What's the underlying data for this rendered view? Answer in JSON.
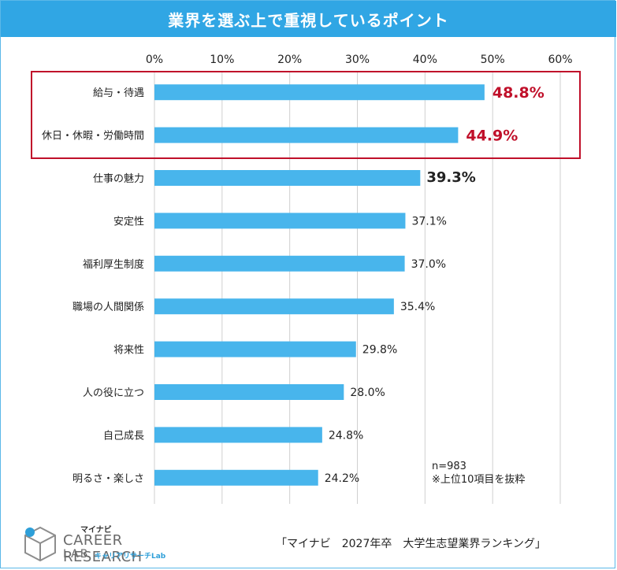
{
  "title": "業界を選ぶ上で重視しているポイント",
  "note_n": "n=983",
  "note_top": "※上位10項目を抜粋",
  "source": "「マイナビ　2027年卒　大学生志望業界ランキング」",
  "logo": {
    "mynavi": "マイナビ",
    "line1": "CAREER RESEARCH",
    "line2": "LAB",
    "sub": "キャリアリサーチLab"
  },
  "colors": {
    "bar": "#48b5ec",
    "title_bg": "#30a6e4",
    "highlight": "#c0102a",
    "grid": "#cfcfcf"
  },
  "chart_data": {
    "type": "bar",
    "orientation": "horizontal",
    "title": "業界を選ぶ上で重視しているポイント",
    "categories": [
      "給与・待遇",
      "休日・休暇・労働時間",
      "仕事の魅力",
      "安定性",
      "福利厚生制度",
      "職場の人間関係",
      "将来性",
      "人の役に立つ",
      "自己成長",
      "明るさ・楽しさ"
    ],
    "values": [
      48.8,
      44.9,
      39.3,
      37.1,
      37.0,
      35.4,
      29.8,
      28.0,
      24.8,
      24.2
    ],
    "value_labels": [
      "48.8%",
      "44.9%",
      "39.3%",
      "37.1%",
      "37.0%",
      "35.4%",
      "29.8%",
      "28.0%",
      "24.8%",
      "24.2%"
    ],
    "xlim": [
      0,
      60
    ],
    "xticks": [
      "0%",
      "10%",
      "20%",
      "30%",
      "40%",
      "50%",
      "60%"
    ],
    "highlighted": [
      "給与・待遇",
      "休日・休暇・労働時間"
    ],
    "grid": true
  }
}
